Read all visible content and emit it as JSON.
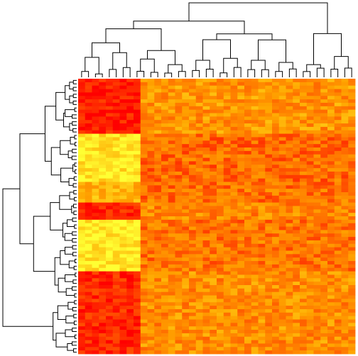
{
  "chart_data": {
    "type": "heatmap",
    "title": "",
    "xlabel": "",
    "ylabel": "",
    "n_rows": 80,
    "n_cols": 40,
    "value_range": [
      0,
      1
    ],
    "color_scale": [
      "#ff0000",
      "#ff6a00",
      "#ffa500",
      "#ffff33"
    ],
    "row_dendrogram": true,
    "col_dendrogram": true,
    "row_groups": [
      {
        "rows": [
          0,
          15
        ],
        "left_block_level": 0.08,
        "right_block_level": 0.55
      },
      {
        "rows": [
          16,
          29
        ],
        "left_block_level": 0.9,
        "right_block_level": 0.38
      },
      {
        "rows": [
          30,
          35
        ],
        "left_block_level": 0.7,
        "right_block_level": 0.4
      },
      {
        "rows": [
          36,
          40
        ],
        "left_block_level": 0.1,
        "right_block_level": 0.5
      },
      {
        "rows": [
          41,
          55
        ],
        "left_block_level": 0.92,
        "right_block_level": 0.42
      },
      {
        "rows": [
          56,
          79
        ],
        "left_block_level": 0.12,
        "right_block_level": 0.52
      }
    ],
    "left_block_cols": [
      0,
      8
    ]
  }
}
